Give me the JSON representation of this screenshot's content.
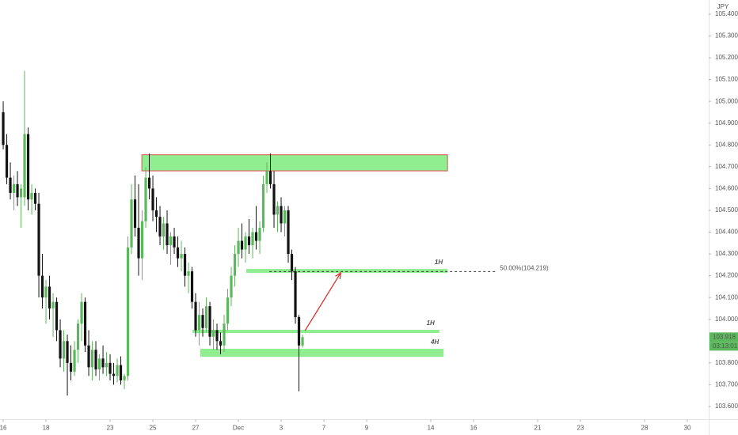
{
  "chart_data": {
    "type": "candlestick",
    "currency": "JPY",
    "up_color": "#5cb85c",
    "down_color": "#131313",
    "xlim": [
      -0.9,
      198
    ],
    "ylim": [
      103.54,
      105.465
    ],
    "xticks": [
      {
        "value": 0,
        "label": "16"
      },
      {
        "value": 12,
        "label": "18"
      },
      {
        "value": 30,
        "label": "23"
      },
      {
        "value": 42,
        "label": "25"
      },
      {
        "value": 54,
        "label": "27"
      },
      {
        "value": 66,
        "label": "Dec"
      },
      {
        "value": 78,
        "label": "3"
      },
      {
        "value": 90,
        "label": "7"
      },
      {
        "value": 102,
        "label": "9"
      },
      {
        "value": 120,
        "label": "14"
      },
      {
        "value": 132,
        "label": "16"
      },
      {
        "value": 150,
        "label": "21"
      },
      {
        "value": 162,
        "label": "23"
      },
      {
        "value": 180,
        "label": "28"
      },
      {
        "value": 192,
        "label": "30"
      }
    ],
    "yticks": [
      {
        "value": 103.6,
        "label": "103.600"
      },
      {
        "value": 103.7,
        "label": "103.700"
      },
      {
        "value": 103.8,
        "label": "103.800"
      },
      {
        "value": 104.0,
        "label": "104.000"
      },
      {
        "value": 104.1,
        "label": "104.100"
      },
      {
        "value": 104.2,
        "label": "104.200"
      },
      {
        "value": 104.3,
        "label": "104.300"
      },
      {
        "value": 104.4,
        "label": "104.400"
      },
      {
        "value": 104.5,
        "label": "104.500"
      },
      {
        "value": 104.6,
        "label": "104.600"
      },
      {
        "value": 104.7,
        "label": "104.700"
      },
      {
        "value": 104.8,
        "label": "104.800"
      },
      {
        "value": 104.9,
        "label": "104.900"
      },
      {
        "value": 105.0,
        "label": "105.000"
      },
      {
        "value": 105.1,
        "label": "105.100"
      },
      {
        "value": 105.2,
        "label": "105.200"
      },
      {
        "value": 105.3,
        "label": "105.300"
      },
      {
        "value": 105.4,
        "label": "105.400"
      }
    ],
    "x": [
      0,
      1,
      2,
      3,
      4,
      5,
      6,
      7,
      8,
      9,
      10,
      11,
      12,
      13,
      14,
      15,
      16,
      17,
      18,
      19,
      20,
      21,
      22,
      23,
      24,
      25,
      26,
      27,
      28,
      29,
      30,
      31,
      32,
      33,
      34,
      35,
      36,
      37,
      38,
      39,
      40,
      41,
      42,
      43,
      44,
      45,
      46,
      47,
      48,
      49,
      50,
      51,
      52,
      53,
      54,
      55,
      56,
      57,
      58,
      59,
      60,
      61,
      62,
      63,
      64,
      65,
      66,
      67,
      68,
      69,
      70,
      71,
      72,
      73,
      74,
      75,
      76,
      77,
      78,
      79,
      80,
      81,
      82,
      83,
      84
    ],
    "open": [
      104.95,
      104.8,
      104.65,
      104.58,
      104.62,
      104.56,
      104.56,
      104.85,
      104.55,
      104.58,
      104.53,
      104.2,
      104.1,
      104.15,
      104.05,
      104.08,
      103.95,
      103.82,
      103.9,
      103.8,
      103.76,
      103.86,
      103.98,
      104.08,
      103.88,
      103.78,
      103.86,
      103.77,
      103.82,
      103.78,
      103.8,
      103.75,
      103.74,
      103.79,
      103.72,
      103.74,
      104.33,
      104.55,
      104.42,
      104.28,
      104.45,
      104.65,
      104.6,
      104.5,
      104.47,
      104.38,
      104.44,
      104.34,
      104.38,
      104.33,
      104.28,
      104.3,
      104.2,
      104.22,
      104.08,
      103.95,
      104.02,
      103.96,
      104.06,
      103.92,
      103.95,
      103.9,
      103.88,
      103.98,
      104.1,
      104.2,
      104.3,
      104.36,
      104.32,
      104.38,
      104.34,
      104.4,
      104.36,
      104.42,
      104.62,
      104.68,
      104.62,
      104.48,
      104.52,
      104.44,
      104.5,
      104.3,
      104.22,
      104.01,
      103.88
    ],
    "high": [
      105.0,
      104.85,
      104.72,
      104.66,
      104.68,
      104.62,
      105.14,
      104.88,
      104.62,
      104.6,
      104.58,
      104.3,
      104.18,
      104.2,
      104.12,
      104.1,
      104.0,
      103.95,
      103.93,
      103.88,
      103.9,
      104.0,
      104.12,
      104.1,
      103.95,
      103.9,
      103.9,
      103.84,
      103.88,
      103.85,
      103.84,
      103.8,
      103.82,
      103.83,
      103.75,
      104.38,
      104.62,
      104.66,
      104.62,
      104.5,
      104.7,
      104.76,
      104.66,
      104.56,
      104.52,
      104.47,
      104.5,
      104.4,
      104.42,
      104.38,
      104.36,
      104.33,
      104.26,
      104.24,
      104.12,
      104.08,
      104.05,
      104.1,
      104.08,
      104.0,
      103.98,
      103.94,
      104.02,
      104.14,
      104.24,
      104.34,
      104.42,
      104.44,
      104.4,
      104.46,
      104.42,
      104.52,
      104.45,
      104.66,
      104.72,
      104.76,
      104.68,
      104.54,
      104.56,
      104.52,
      104.52,
      104.32,
      104.24,
      104.02,
      103.93
    ],
    "low": [
      104.78,
      104.62,
      104.55,
      104.5,
      104.52,
      104.42,
      104.52,
      104.5,
      104.48,
      104.5,
      104.1,
      104.05,
      103.98,
      104.0,
      103.92,
      103.9,
      103.78,
      103.76,
      103.65,
      103.72,
      103.74,
      103.8,
      103.9,
      103.85,
      103.74,
      103.72,
      103.74,
      103.72,
      103.75,
      103.74,
      103.72,
      103.7,
      103.71,
      103.7,
      103.68,
      103.72,
      104.3,
      104.38,
      104.2,
      104.18,
      104.42,
      104.55,
      104.45,
      104.4,
      104.34,
      104.32,
      104.3,
      104.25,
      104.3,
      104.24,
      104.22,
      104.15,
      104.12,
      104.05,
      103.92,
      103.88,
      103.92,
      103.94,
      103.88,
      103.86,
      103.86,
      103.84,
      103.85,
      103.95,
      104.06,
      104.15,
      104.24,
      104.28,
      104.26,
      104.3,
      104.28,
      104.32,
      104.3,
      104.4,
      104.58,
      104.6,
      104.42,
      104.4,
      104.4,
      104.38,
      104.26,
      104.18,
      103.98,
      103.67,
      103.87
    ],
    "close": [
      104.8,
      104.65,
      104.58,
      104.62,
      104.56,
      104.6,
      104.85,
      104.55,
      104.58,
      104.53,
      104.2,
      104.1,
      104.15,
      104.05,
      104.08,
      103.95,
      103.82,
      103.9,
      103.8,
      103.76,
      103.86,
      103.98,
      104.08,
      103.88,
      103.78,
      103.86,
      103.77,
      103.82,
      103.78,
      103.8,
      103.75,
      103.74,
      103.79,
      103.72,
      103.74,
      104.33,
      104.55,
      104.42,
      104.28,
      104.45,
      104.65,
      104.6,
      104.5,
      104.47,
      104.38,
      104.44,
      104.34,
      104.38,
      104.33,
      104.28,
      104.3,
      104.2,
      104.22,
      104.08,
      103.95,
      104.02,
      103.96,
      104.06,
      103.92,
      103.95,
      103.9,
      103.88,
      103.98,
      104.1,
      104.2,
      104.3,
      104.36,
      104.32,
      104.38,
      104.34,
      104.4,
      104.36,
      104.42,
      104.62,
      104.68,
      104.62,
      104.48,
      104.52,
      104.44,
      104.5,
      104.3,
      104.22,
      104.01,
      103.88,
      103.918
    ],
    "last_price": {
      "value": 103.918,
      "label": "103.918"
    },
    "countdown": "03:13:01",
    "zones": [
      {
        "x": [
          38.9,
          124.7
        ],
        "y": [
          104.681,
          104.755
        ],
        "fill": "#90ee90",
        "border": "#e05050"
      },
      {
        "x": [
          68.2,
          124.7
        ],
        "y": [
          104.213,
          104.231
        ],
        "fill": "#90ee90",
        "label": "1H"
      },
      {
        "x": [
          53.1,
          122.4
        ],
        "y": [
          103.937,
          103.952
        ],
        "fill": "#90ee90",
        "label": "1H"
      },
      {
        "x": [
          55.3,
          123.6
        ],
        "y": [
          103.828,
          103.865
        ],
        "fill": "#90ee90",
        "label": "4H"
      }
    ],
    "fib_level": {
      "x": [
        74.7,
        138.5
      ],
      "level": 104.219,
      "label": "50.00%(104.219)"
    },
    "arrow": {
      "x": [
        84.7,
        94.7
      ],
      "y": [
        103.948,
        104.213
      ],
      "color": "#e02020"
    }
  }
}
